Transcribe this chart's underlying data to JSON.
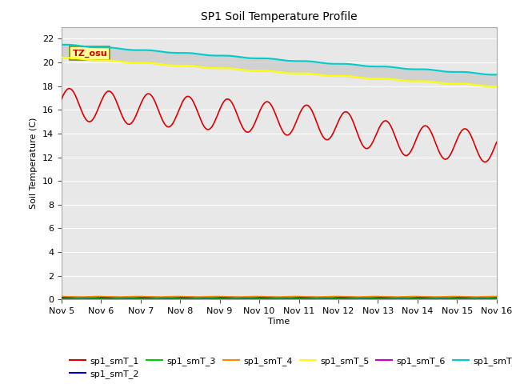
{
  "title": "SP1 Soil Temperature Profile",
  "xlabel": "Time",
  "ylabel": "Soil Temperature (C)",
  "ylim": [
    0,
    23
  ],
  "yticks": [
    0,
    2,
    4,
    6,
    8,
    10,
    12,
    14,
    16,
    18,
    20,
    22
  ],
  "xtick_labels": [
    "Nov 5",
    "Nov 6",
    "Nov 7",
    "Nov 8",
    "Nov 9",
    "Nov 10",
    "Nov 11",
    "Nov 12",
    "Nov 13",
    "Nov 14",
    "Nov 15",
    "Nov 16"
  ],
  "annotation_text": "TZ_osu",
  "annotation_color": "#cc0000",
  "annotation_bg": "#ffff99",
  "annotation_border": "#888800",
  "colors": {
    "sp1_smT_1": "#dd0000",
    "sp1_smT_2": "#0000cc",
    "sp1_smT_3": "#00cc00",
    "sp1_smT_4": "#ff8800",
    "sp1_smT_5": "#ffff00",
    "sp1_smT_6": "#cc00cc",
    "sp1_smT_7": "#00cccc"
  },
  "plot_bg": "#e8e8e8",
  "fig_bg": "#ffffff",
  "grid_color": "#ffffff",
  "fill_color": "#cccccc",
  "n_points": 264
}
